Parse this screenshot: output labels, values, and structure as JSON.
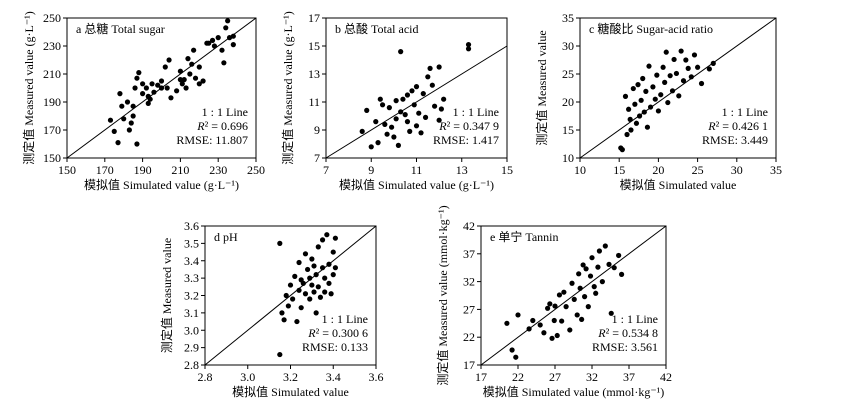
{
  "chart_data": [
    {
      "id": "a",
      "type": "scatter",
      "title": "a 总糖 Total sugar",
      "xlabel": "模拟值 Simulated value (g·L⁻¹)",
      "ylabel": "测定值 Measured value (g·L⁻¹)",
      "xlim": [
        150,
        250
      ],
      "ylim": [
        150,
        250
      ],
      "xticks": [
        150,
        170,
        190,
        210,
        230,
        250
      ],
      "yticks": [
        150,
        170,
        190,
        210,
        230,
        250
      ],
      "annotations": [
        "1 : 1 Line",
        "R² = 0.696",
        "RMSE: 11.807"
      ],
      "points": [
        [
          173,
          177
        ],
        [
          175,
          169
        ],
        [
          177,
          161
        ],
        [
          178,
          196
        ],
        [
          179,
          187
        ],
        [
          180,
          178
        ],
        [
          182,
          190
        ],
        [
          183,
          170
        ],
        [
          184,
          175
        ],
        [
          185,
          187
        ],
        [
          185,
          180
        ],
        [
          186,
          200
        ],
        [
          187,
          160
        ],
        [
          187,
          207
        ],
        [
          188,
          211
        ],
        [
          190,
          203
        ],
        [
          190,
          196
        ],
        [
          192,
          200
        ],
        [
          193,
          189
        ],
        [
          193,
          194
        ],
        [
          194,
          192
        ],
        [
          195,
          203
        ],
        [
          196,
          197
        ],
        [
          198,
          202
        ],
        [
          200,
          200
        ],
        [
          200,
          205
        ],
        [
          202,
          215
        ],
        [
          203,
          200
        ],
        [
          204,
          220
        ],
        [
          205,
          193
        ],
        [
          208,
          198
        ],
        [
          210,
          212
        ],
        [
          210,
          206
        ],
        [
          211,
          203
        ],
        [
          212,
          206
        ],
        [
          213,
          200
        ],
        [
          214,
          221
        ],
        [
          215,
          210
        ],
        [
          216,
          217
        ],
        [
          217,
          227
        ],
        [
          218,
          207
        ],
        [
          220,
          215
        ],
        [
          220,
          203
        ],
        [
          222,
          205
        ],
        [
          224,
          232
        ],
        [
          225,
          232
        ],
        [
          227,
          234
        ],
        [
          228,
          230
        ],
        [
          230,
          236
        ],
        [
          232,
          227
        ],
        [
          233,
          218
        ],
        [
          234,
          243
        ],
        [
          235,
          248
        ],
        [
          236,
          236
        ],
        [
          238,
          237
        ],
        [
          238,
          231
        ]
      ]
    },
    {
      "id": "b",
      "type": "scatter",
      "title": "b 总酸 Total acid",
      "xlabel": "模拟值 Simulated value (g·L⁻¹)",
      "ylabel": "测定值 Measured value (g·L⁻¹)",
      "xlim": [
        7,
        15
      ],
      "ylim": [
        7,
        17
      ],
      "xticks": [
        7,
        9,
        11,
        13,
        15
      ],
      "yticks": [
        7,
        9,
        11,
        13,
        15,
        17
      ],
      "annotations": [
        "1 : 1 Line",
        "R² = 0.347 9",
        "RMSE: 1.417"
      ],
      "points": [
        [
          8.6,
          8.9
        ],
        [
          8.8,
          10.4
        ],
        [
          9.0,
          7.8
        ],
        [
          9.2,
          9.6
        ],
        [
          9.3,
          8.1
        ],
        [
          9.4,
          11.2
        ],
        [
          9.5,
          10.8
        ],
        [
          9.6,
          9.4
        ],
        [
          9.7,
          8.7
        ],
        [
          9.8,
          10.6
        ],
        [
          9.9,
          9.2
        ],
        [
          10.0,
          8.5
        ],
        [
          10.1,
          11.1
        ],
        [
          10.1,
          9.8
        ],
        [
          10.2,
          7.9
        ],
        [
          10.3,
          10.3
        ],
        [
          10.3,
          14.6
        ],
        [
          10.4,
          11.2
        ],
        [
          10.5,
          10.1
        ],
        [
          10.6,
          11.5
        ],
        [
          10.6,
          9.6
        ],
        [
          10.7,
          8.9
        ],
        [
          10.8,
          11.8
        ],
        [
          10.9,
          10.8
        ],
        [
          11.0,
          9.3
        ],
        [
          11.0,
          12.1
        ],
        [
          11.1,
          10.2
        ],
        [
          11.2,
          8.8
        ],
        [
          11.3,
          11.6
        ],
        [
          11.4,
          9.9
        ],
        [
          11.5,
          12.8
        ],
        [
          11.6,
          13.4
        ],
        [
          11.7,
          12.2
        ],
        [
          11.8,
          10.7
        ],
        [
          12.0,
          13.5
        ],
        [
          12.0,
          9.7
        ],
        [
          12.1,
          10.5
        ],
        [
          12.2,
          11.2
        ],
        [
          13.3,
          15.1
        ],
        [
          13.3,
          14.8
        ]
      ]
    },
    {
      "id": "c",
      "type": "scatter",
      "title": "c 糖酸比 Sugar-acid ratio",
      "xlabel": "模拟值 Simulated value",
      "ylabel": "测定值 Measured value",
      "xlim": [
        10,
        35
      ],
      "ylim": [
        10,
        35
      ],
      "xticks": [
        10,
        15,
        20,
        25,
        30,
        35
      ],
      "yticks": [
        10,
        15,
        20,
        25,
        30,
        35
      ],
      "annotations": [
        "1 : 1 Line",
        "R² = 0.426 1",
        "RMSE: 3.449"
      ],
      "points": [
        [
          15.2,
          11.8
        ],
        [
          15.4,
          11.5
        ],
        [
          15.8,
          21.0
        ],
        [
          16.0,
          14.2
        ],
        [
          16.2,
          18.7
        ],
        [
          16.4,
          16.9
        ],
        [
          16.5,
          15.0
        ],
        [
          16.8,
          22.4
        ],
        [
          17.0,
          19.6
        ],
        [
          17.2,
          16.2
        ],
        [
          17.4,
          23.1
        ],
        [
          17.6,
          17.5
        ],
        [
          17.8,
          20.3
        ],
        [
          18.0,
          24.2
        ],
        [
          18.2,
          18.2
        ],
        [
          18.4,
          21.9
        ],
        [
          18.6,
          15.5
        ],
        [
          18.8,
          26.4
        ],
        [
          19.0,
          19.1
        ],
        [
          19.3,
          22.7
        ],
        [
          19.6,
          20.5
        ],
        [
          19.8,
          24.8
        ],
        [
          20.0,
          18.4
        ],
        [
          20.3,
          21.3
        ],
        [
          20.6,
          26.2
        ],
        [
          20.8,
          23.5
        ],
        [
          21.0,
          28.9
        ],
        [
          21.2,
          19.9
        ],
        [
          21.5,
          24.7
        ],
        [
          21.8,
          22.0
        ],
        [
          22.0,
          27.6
        ],
        [
          22.3,
          25.1
        ],
        [
          22.6,
          21.1
        ],
        [
          22.9,
          29.1
        ],
        [
          23.2,
          23.8
        ],
        [
          23.5,
          27.5
        ],
        [
          23.8,
          26.0
        ],
        [
          24.2,
          24.5
        ],
        [
          24.6,
          28.4
        ],
        [
          25.0,
          26.2
        ],
        [
          25.5,
          23.3
        ],
        [
          26.5,
          25.9
        ],
        [
          27.0,
          26.9
        ]
      ]
    },
    {
      "id": "d",
      "type": "scatter",
      "title": "d pH",
      "xlabel": "模拟值 Simulated value",
      "ylabel": "测定值 Measured value",
      "xlim": [
        2.8,
        3.6
      ],
      "ylim": [
        2.8,
        3.6
      ],
      "xticks": [
        2.8,
        3.0,
        3.2,
        3.4,
        3.6
      ],
      "yticks": [
        2.8,
        2.9,
        3.0,
        3.1,
        3.2,
        3.3,
        3.4,
        3.5,
        3.6
      ],
      "annotations": [
        "1 : 1 Line",
        "R² = 0.300 6",
        "RMSE: 0.133"
      ],
      "points": [
        [
          3.15,
          2.86
        ],
        [
          3.15,
          3.5
        ],
        [
          3.16,
          3.1
        ],
        [
          3.17,
          3.06
        ],
        [
          3.18,
          3.2
        ],
        [
          3.19,
          3.14
        ],
        [
          3.2,
          3.26
        ],
        [
          3.21,
          3.18
        ],
        [
          3.22,
          3.31
        ],
        [
          3.23,
          3.05
        ],
        [
          3.24,
          3.23
        ],
        [
          3.24,
          3.39
        ],
        [
          3.25,
          3.13
        ],
        [
          3.25,
          3.29
        ],
        [
          3.26,
          3.27
        ],
        [
          3.27,
          3.21
        ],
        [
          3.27,
          3.44
        ],
        [
          3.28,
          3.35
        ],
        [
          3.29,
          3.18
        ],
        [
          3.29,
          3.3
        ],
        [
          3.3,
          3.26
        ],
        [
          3.3,
          3.41
        ],
        [
          3.31,
          3.22
        ],
        [
          3.31,
          3.37
        ],
        [
          3.32,
          3.1
        ],
        [
          3.32,
          3.32
        ],
        [
          3.33,
          3.25
        ],
        [
          3.33,
          3.48
        ],
        [
          3.34,
          3.19
        ],
        [
          3.35,
          3.36
        ],
        [
          3.35,
          3.52
        ],
        [
          3.36,
          3.22
        ],
        [
          3.36,
          3.3
        ],
        [
          3.37,
          3.55
        ],
        [
          3.38,
          3.38
        ],
        [
          3.38,
          3.27
        ],
        [
          3.39,
          3.21
        ],
        [
          3.4,
          3.32
        ],
        [
          3.4,
          3.45
        ],
        [
          3.41,
          3.53
        ],
        [
          3.41,
          3.36
        ]
      ]
    },
    {
      "id": "e",
      "type": "scatter",
      "title": "e 单宁 Tannin",
      "xlabel": "模拟值 Simulated value (mmol·kg⁻¹)",
      "ylabel": "测定值 Measured value (mmol·kg⁻¹)",
      "xlim": [
        17,
        42
      ],
      "ylim": [
        17,
        42
      ],
      "xticks": [
        17,
        22,
        27,
        32,
        37,
        42
      ],
      "yticks": [
        17,
        22,
        27,
        32,
        37,
        42
      ],
      "annotations": [
        "1 : 1 Line",
        "R² = 0.534 8",
        "RMSE: 3.561"
      ],
      "points": [
        [
          20.5,
          24.5
        ],
        [
          21.2,
          19.7
        ],
        [
          21.7,
          18.4
        ],
        [
          22.0,
          26.0
        ],
        [
          23.5,
          23.5
        ],
        [
          24.0,
          25.0
        ],
        [
          25.0,
          24.2
        ],
        [
          25.5,
          22.8
        ],
        [
          26.0,
          27.2
        ],
        [
          26.3,
          28.0
        ],
        [
          26.6,
          21.8
        ],
        [
          26.9,
          25.0
        ],
        [
          27.0,
          27.6
        ],
        [
          27.3,
          22.3
        ],
        [
          27.6,
          29.6
        ],
        [
          27.9,
          24.9
        ],
        [
          28.2,
          30.1
        ],
        [
          28.5,
          27.5
        ],
        [
          29.0,
          23.3
        ],
        [
          29.3,
          31.7
        ],
        [
          29.6,
          28.8
        ],
        [
          30.0,
          26.0
        ],
        [
          30.2,
          33.4
        ],
        [
          30.4,
          30.8
        ],
        [
          30.6,
          25.2
        ],
        [
          30.8,
          35.0
        ],
        [
          31.0,
          29.3
        ],
        [
          31.2,
          34.3
        ],
        [
          31.5,
          27.5
        ],
        [
          31.8,
          33.0
        ],
        [
          32.0,
          36.3
        ],
        [
          32.3,
          31.1
        ],
        [
          32.5,
          29.9
        ],
        [
          32.8,
          34.6
        ],
        [
          33.0,
          37.5
        ],
        [
          33.4,
          32.0
        ],
        [
          33.8,
          38.4
        ],
        [
          34.3,
          35.1
        ],
        [
          34.6,
          26.3
        ],
        [
          35.0,
          34.5
        ],
        [
          35.6,
          36.7
        ],
        [
          36.0,
          33.3
        ]
      ]
    }
  ]
}
